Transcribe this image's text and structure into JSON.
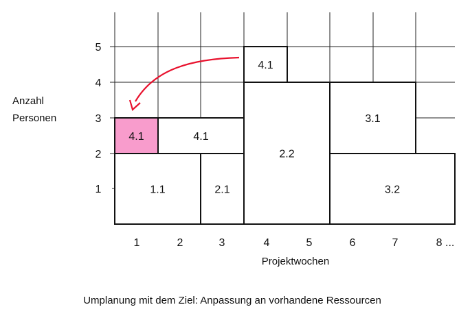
{
  "y_axis_label": [
    "Anzahl",
    "Personen"
  ],
  "x_axis_label": "Projektwochen",
  "y_ticks": [
    "1",
    "2",
    "3",
    "4",
    "5"
  ],
  "x_ticks": [
    "1",
    "2",
    "3",
    "4",
    "5",
    "6",
    "7",
    "8 ..."
  ],
  "caption": "Umplanung mit dem Ziel: Anpassung an vorhandene Ressourcen",
  "highlight_color": "#f89ccc",
  "arrow_color": "#e8112d",
  "tasks": [
    {
      "label": "1.1",
      "week_start": 0,
      "week_end": 2,
      "persons_from": 0,
      "persons_to": 2
    },
    {
      "label": "2.1",
      "week_start": 2,
      "week_end": 3,
      "persons_from": 0,
      "persons_to": 2
    },
    {
      "label": "4.1",
      "week_start": 0,
      "week_end": 1,
      "persons_from": 2,
      "persons_to": 3,
      "highlight": true
    },
    {
      "label": "4.1",
      "week_start": 1,
      "week_end": 3,
      "persons_from": 2,
      "persons_to": 3
    },
    {
      "label": "2.2",
      "week_start": 3,
      "week_end": 5,
      "persons_from": 0,
      "persons_to": 4
    },
    {
      "label": "4.1",
      "week_start": 3,
      "week_end": 4,
      "persons_from": 4,
      "persons_to": 5
    },
    {
      "label": "3.1",
      "week_start": 5,
      "week_end": 7,
      "persons_from": 2,
      "persons_to": 4
    },
    {
      "label": "3.2",
      "week_start": 5,
      "week_end": 8,
      "persons_from": 0,
      "persons_to": 2
    }
  ]
}
